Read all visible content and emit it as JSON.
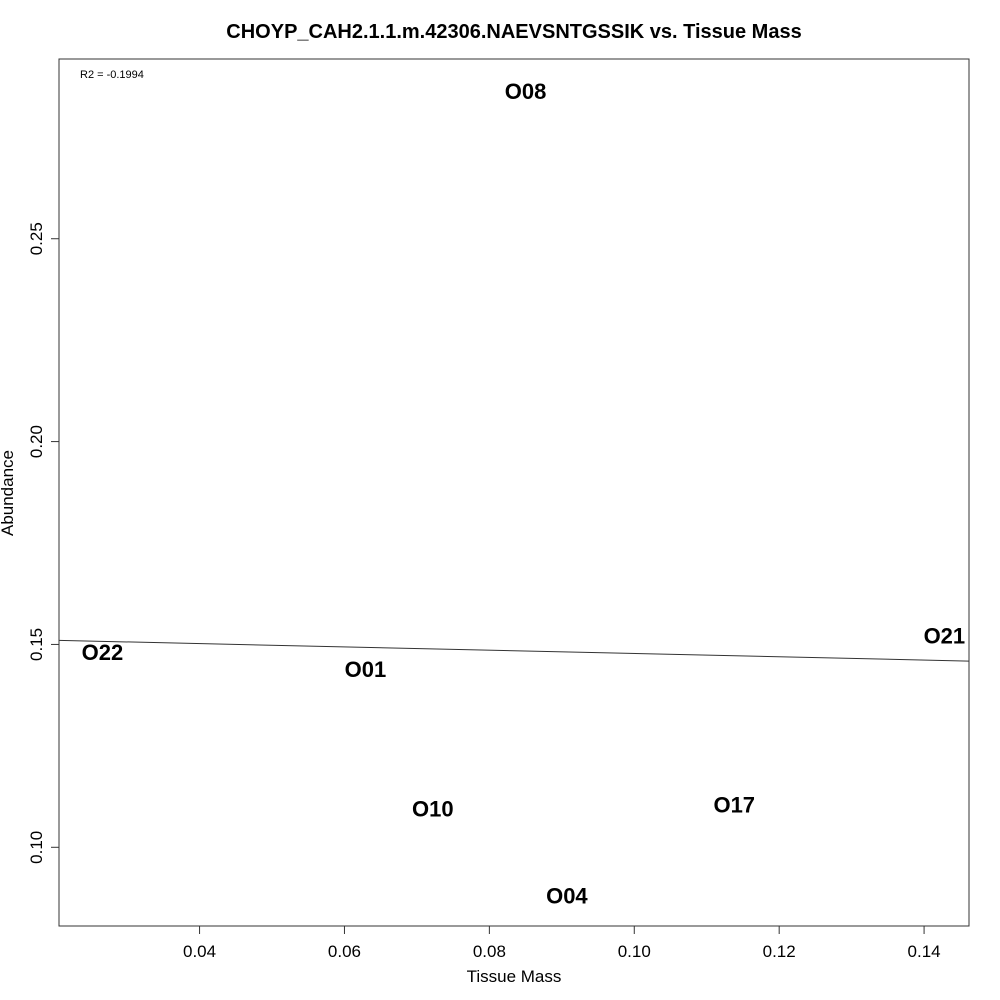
{
  "chart_data": {
    "type": "scatter",
    "title": "CHOYP_CAH2.1.1.m.42306.NAEVSNTGSSIK vs. Tissue Mass",
    "xlabel": "Tissue Mass",
    "ylabel": "Abundance",
    "xlim": [
      0.0206,
      0.1462
    ],
    "ylim": [
      0.0806,
      0.2943
    ],
    "xticks": [
      0.04,
      0.06,
      0.08,
      0.1,
      0.12,
      0.14
    ],
    "xtick_labels": [
      "0.04",
      "0.06",
      "0.08",
      "0.10",
      "0.12",
      "0.14"
    ],
    "yticks": [
      0.1,
      0.15,
      0.2,
      0.25
    ],
    "ytick_labels": [
      "0.10",
      "0.15",
      "0.20",
      "0.25"
    ],
    "annotation": "R2 = -0.1994",
    "grid": false,
    "points": [
      {
        "label": "O08",
        "x": 0.085,
        "y": 0.2863
      },
      {
        "label": "O21",
        "x": 0.1428,
        "y": 0.1521
      },
      {
        "label": "O22",
        "x": 0.0266,
        "y": 0.148
      },
      {
        "label": "O01",
        "x": 0.0629,
        "y": 0.1438
      },
      {
        "label": "O10",
        "x": 0.0722,
        "y": 0.1094
      },
      {
        "label": "O17",
        "x": 0.1138,
        "y": 0.1104
      },
      {
        "label": "O04",
        "x": 0.0907,
        "y": 0.088
      }
    ],
    "trend_line": {
      "x": [
        0.0206,
        0.1462
      ],
      "y": [
        0.151,
        0.1459
      ]
    }
  }
}
